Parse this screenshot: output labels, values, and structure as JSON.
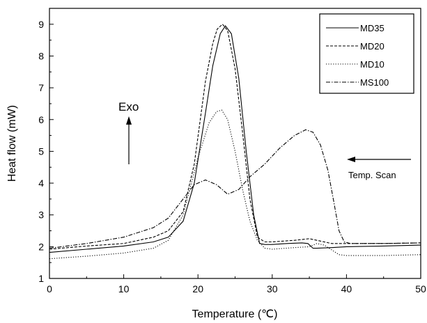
{
  "chart_data": {
    "type": "line",
    "xlabel": "Temperature (℃)",
    "ylabel": "Heat flow (mW)",
    "xlim": [
      0,
      50
    ],
    "ylim": [
      1,
      9.5
    ],
    "xticks": [
      0,
      10,
      20,
      30,
      40,
      50
    ],
    "yticks": [
      1,
      2,
      3,
      4,
      5,
      6,
      7,
      8,
      9
    ],
    "grid": false,
    "legend_position": "top-right",
    "series": [
      {
        "name": "MD35",
        "style": "solid",
        "color": "#000000",
        "x": [
          0,
          5,
          10,
          14,
          16,
          18,
          19.5,
          21,
          22,
          23,
          23.7,
          24.5,
          25.5,
          26.5,
          27.5,
          28.3,
          29,
          30,
          32,
          34,
          34.8,
          35.5,
          36,
          38,
          40,
          45,
          50
        ],
        "y": [
          1.82,
          1.92,
          2.02,
          2.15,
          2.3,
          2.8,
          4.0,
          6.2,
          7.7,
          8.7,
          8.95,
          8.7,
          7.3,
          5.0,
          3.0,
          2.1,
          2.07,
          2.07,
          2.1,
          2.12,
          2.1,
          1.95,
          1.95,
          1.97,
          2.0,
          2.02,
          2.05
        ]
      },
      {
        "name": "MD20",
        "style": "dashed",
        "color": "#000000",
        "x": [
          0,
          5,
          10,
          14,
          16,
          18,
          19.5,
          21,
          22,
          22.6,
          23.3,
          24,
          25,
          26,
          27,
          28,
          29,
          30,
          33,
          35,
          36,
          38,
          40,
          45,
          50
        ],
        "y": [
          1.92,
          2.02,
          2.1,
          2.3,
          2.5,
          3.1,
          4.6,
          7.2,
          8.4,
          8.85,
          9.0,
          8.8,
          7.6,
          5.6,
          3.5,
          2.3,
          2.15,
          2.15,
          2.2,
          2.25,
          2.2,
          2.1,
          2.1,
          2.1,
          2.12
        ]
      },
      {
        "name": "MD10",
        "style": "dotted",
        "color": "#000000",
        "x": [
          0,
          5,
          10,
          14,
          16,
          18,
          20,
          21.5,
          22.5,
          23.2,
          24,
          25,
          26,
          27,
          28,
          29,
          30,
          33,
          35,
          36,
          37,
          38,
          39,
          40,
          45,
          50
        ],
        "y": [
          1.62,
          1.7,
          1.8,
          1.95,
          2.2,
          3.0,
          4.8,
          5.9,
          6.25,
          6.3,
          6.0,
          5.0,
          3.8,
          2.8,
          2.2,
          1.95,
          1.92,
          1.97,
          2.0,
          2.1,
          2.05,
          1.9,
          1.75,
          1.72,
          1.72,
          1.75
        ]
      },
      {
        "name": "MS100",
        "style": "dashdot",
        "color": "#000000",
        "x": [
          0,
          5,
          10,
          14,
          16,
          18,
          19.5,
          21,
          22.5,
          24,
          25.5,
          27,
          29,
          31,
          33,
          34.5,
          35.5,
          36.5,
          37.5,
          38.3,
          39,
          39.7,
          40.5,
          45,
          50
        ],
        "y": [
          1.95,
          2.1,
          2.3,
          2.6,
          2.9,
          3.5,
          3.95,
          4.1,
          3.95,
          3.65,
          3.8,
          4.2,
          4.6,
          5.1,
          5.5,
          5.68,
          5.6,
          5.2,
          4.4,
          3.4,
          2.5,
          2.15,
          2.1,
          2.1,
          2.12
        ]
      }
    ],
    "annotations": [
      {
        "text": "Exo",
        "arrow": "up"
      },
      {
        "text": "Temp. Scan",
        "arrow": "left"
      }
    ]
  }
}
